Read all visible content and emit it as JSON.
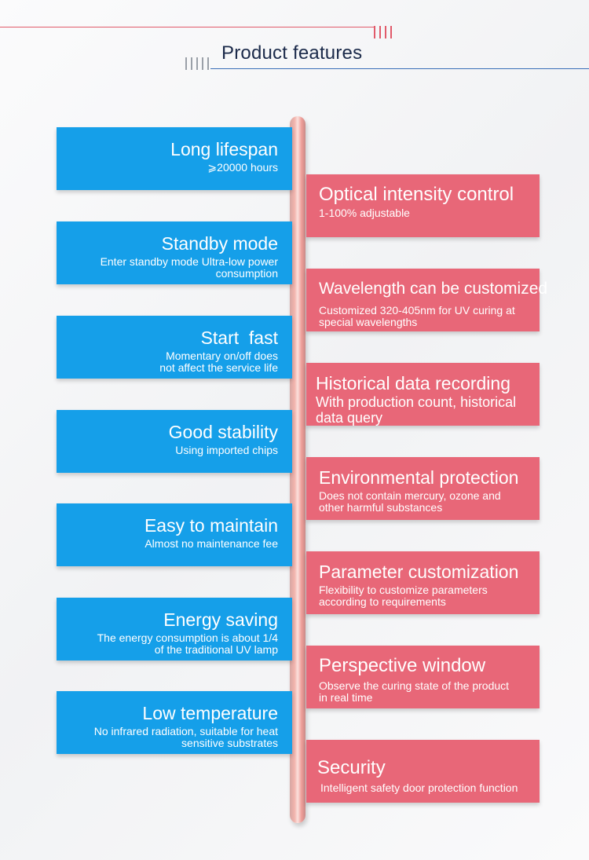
{
  "header": {
    "title": "Product features"
  },
  "features_left": [
    {
      "title": "Long lifespan",
      "subtitle": "⩾20000 hours"
    },
    {
      "title": "Standby mode",
      "subtitle": "Enter standby mode Ultra-low power consumption"
    },
    {
      "title": "Start  fast",
      "subtitle": "Momentary on/off does not affect the service life"
    },
    {
      "title": "Good stability",
      "subtitle": "Using imported chips"
    },
    {
      "title": "Easy to maintain",
      "subtitle": "Almost no maintenance fee"
    },
    {
      "title": "Energy saving",
      "subtitle": "The energy consumption is about 1/4 of the traditional UV lamp"
    },
    {
      "title": "Low temperature",
      "subtitle": "No infrared radiation, suitable for heat sensitive substrates"
    }
  ],
  "features_right": [
    {
      "title": "Optical intensity control",
      "subtitle": "1-100% adjustable"
    },
    {
      "title": "Wavelength can be customized",
      "subtitle": "Customized 320-405nm for UV curing at special wavelengths"
    },
    {
      "title": "Historical data recording",
      "subtitle": "With production count, historical data query"
    },
    {
      "title": "Environmental protection",
      "subtitle": "Does not contain mercury, ozone and other harmful substances"
    },
    {
      "title": "Parameter customization",
      "subtitle": "Flexibility to customize parameters according to requirements"
    },
    {
      "title": "Perspective window",
      "subtitle": "Observe the curing state of the product in real time"
    },
    {
      "title": "Security",
      "subtitle": "Intelligent safety door protection function"
    }
  ],
  "colors": {
    "left_card": "#159fe9",
    "right_card": "#e86778",
    "accent_red": "#e15a6a",
    "accent_blue": "#3a6fb8"
  }
}
